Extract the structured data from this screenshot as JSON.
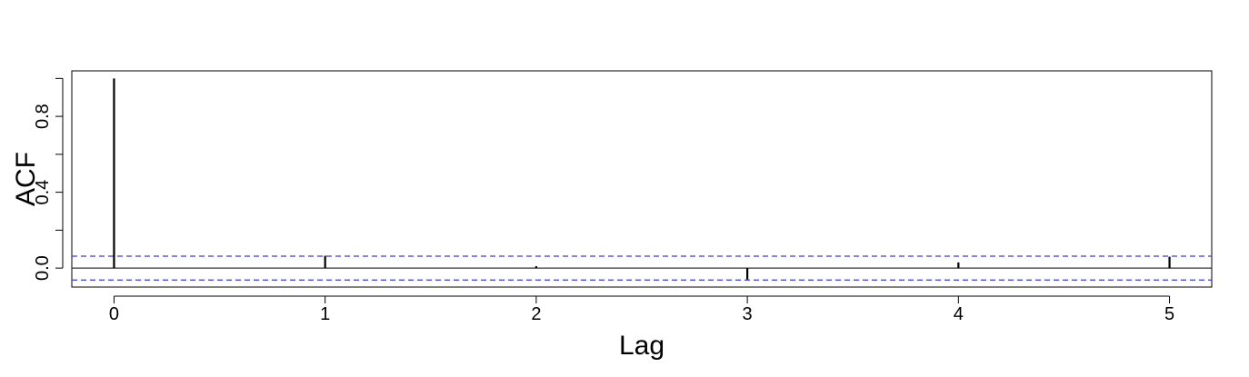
{
  "chart_data": {
    "type": "bar",
    "xlabel": "Lag",
    "ylabel": "ACF",
    "x_ticks": [
      "0",
      "1",
      "2",
      "3",
      "4",
      "5"
    ],
    "y_ticks": [
      "0.0",
      "0.4",
      "0.8"
    ],
    "xlim": [
      -0.2,
      5.2
    ],
    "ylim": [
      -0.1,
      1.04
    ],
    "x": [
      0,
      1,
      2,
      3,
      4,
      5
    ],
    "values": [
      1.0,
      0.065,
      0.01,
      -0.06,
      0.03,
      0.06
    ],
    "confidence_band": 0.063,
    "colors": {
      "bars": "#000000",
      "band": "#3b3bd1",
      "zero_line": "#333333",
      "frame": "#000000"
    },
    "grid": false
  }
}
